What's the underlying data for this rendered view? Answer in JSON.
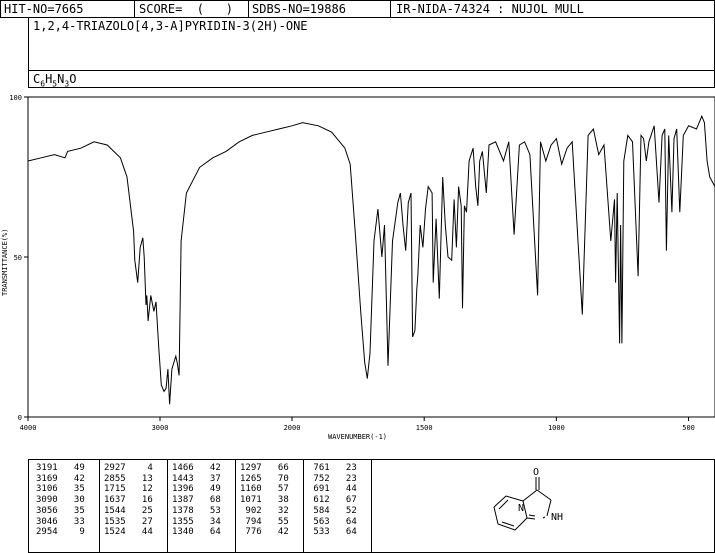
{
  "header": {
    "hit_no": "HIT-NO=7665",
    "score": "SCORE=  (   )",
    "sdbs_no": "SDBS-NO=19886",
    "ir_info": "IR-NIDA-74324 : NUJOL MULL",
    "compound_name": "1,2,4-TRIAZOLO[4,3-A]PYRIDIN-3(2H)-ONE",
    "formula": "C6H5N3O"
  },
  "chart_data": {
    "type": "line",
    "xlabel": "WAVENUMBER(-1)",
    "ylabel": "TRANSMITTANCE(%)",
    "xlim": [
      4000,
      400
    ],
    "ylim": [
      0,
      100
    ],
    "x_ticks": [
      "4000",
      "3000",
      "2000",
      "1500",
      "1000",
      "500"
    ],
    "y_ticks": [
      "100",
      "50",
      "0"
    ],
    "series": [
      {
        "points": [
          [
            4000,
            80
          ],
          [
            3900,
            81
          ],
          [
            3800,
            82
          ],
          [
            3720,
            81
          ],
          [
            3700,
            83
          ],
          [
            3600,
            84
          ],
          [
            3500,
            86
          ],
          [
            3400,
            85
          ],
          [
            3300,
            81
          ],
          [
            3250,
            75
          ],
          [
            3200,
            58
          ],
          [
            3191,
            49
          ],
          [
            3169,
            42
          ],
          [
            3150,
            53
          ],
          [
            3130,
            56
          ],
          [
            3120,
            50
          ],
          [
            3106,
            35
          ],
          [
            3100,
            38
          ],
          [
            3090,
            30
          ],
          [
            3070,
            38
          ],
          [
            3056,
            35
          ],
          [
            3046,
            33
          ],
          [
            3030,
            36
          ],
          [
            3010,
            22
          ],
          [
            2990,
            10
          ],
          [
            2970,
            8
          ],
          [
            2954,
            9
          ],
          [
            2940,
            15
          ],
          [
            2927,
            4
          ],
          [
            2910,
            15
          ],
          [
            2880,
            19
          ],
          [
            2870,
            17
          ],
          [
            2855,
            13
          ],
          [
            2840,
            55
          ],
          [
            2800,
            70
          ],
          [
            2700,
            78
          ],
          [
            2600,
            81
          ],
          [
            2500,
            83
          ],
          [
            2400,
            86
          ],
          [
            2300,
            88
          ],
          [
            2200,
            89
          ],
          [
            2100,
            90
          ],
          [
            2000,
            91
          ],
          [
            1960,
            92
          ],
          [
            1900,
            91
          ],
          [
            1850,
            89
          ],
          [
            1800,
            84
          ],
          [
            1780,
            79
          ],
          [
            1760,
            57
          ],
          [
            1740,
            33
          ],
          [
            1725,
            17
          ],
          [
            1715,
            12
          ],
          [
            1705,
            20
          ],
          [
            1690,
            55
          ],
          [
            1675,
            65
          ],
          [
            1660,
            50
          ],
          [
            1650,
            60
          ],
          [
            1637,
            16
          ],
          [
            1620,
            55
          ],
          [
            1600,
            67
          ],
          [
            1590,
            70
          ],
          [
            1580,
            60
          ],
          [
            1570,
            52
          ],
          [
            1560,
            67
          ],
          [
            1550,
            70
          ],
          [
            1544,
            25
          ],
          [
            1535,
            27
          ],
          [
            1528,
            40
          ],
          [
            1524,
            44
          ],
          [
            1515,
            60
          ],
          [
            1505,
            53
          ],
          [
            1495,
            65
          ],
          [
            1485,
            72
          ],
          [
            1470,
            70
          ],
          [
            1466,
            42
          ],
          [
            1455,
            62
          ],
          [
            1443,
            37
          ],
          [
            1430,
            75
          ],
          [
            1420,
            60
          ],
          [
            1410,
            50
          ],
          [
            1396,
            49
          ],
          [
            1387,
            68
          ],
          [
            1378,
            53
          ],
          [
            1370,
            72
          ],
          [
            1360,
            66
          ],
          [
            1355,
            34
          ],
          [
            1348,
            66
          ],
          [
            1340,
            64
          ],
          [
            1330,
            80
          ],
          [
            1315,
            84
          ],
          [
            1305,
            72
          ],
          [
            1297,
            66
          ],
          [
            1290,
            80
          ],
          [
            1280,
            83
          ],
          [
            1265,
            70
          ],
          [
            1255,
            85
          ],
          [
            1230,
            86
          ],
          [
            1200,
            80
          ],
          [
            1180,
            86
          ],
          [
            1160,
            57
          ],
          [
            1140,
            85
          ],
          [
            1120,
            86
          ],
          [
            1100,
            82
          ],
          [
            1071,
            38
          ],
          [
            1060,
            86
          ],
          [
            1040,
            80
          ],
          [
            1020,
            85
          ],
          [
            1000,
            87
          ],
          [
            980,
            79
          ],
          [
            960,
            84
          ],
          [
            940,
            86
          ],
          [
            902,
            32
          ],
          [
            880,
            88
          ],
          [
            860,
            90
          ],
          [
            840,
            82
          ],
          [
            820,
            85
          ],
          [
            794,
            55
          ],
          [
            780,
            68
          ],
          [
            776,
            42
          ],
          [
            770,
            70
          ],
          [
            761,
            23
          ],
          [
            757,
            60
          ],
          [
            752,
            23
          ],
          [
            745,
            80
          ],
          [
            730,
            88
          ],
          [
            712,
            86
          ],
          [
            691,
            44
          ],
          [
            680,
            88
          ],
          [
            670,
            87
          ],
          [
            660,
            80
          ],
          [
            650,
            86
          ],
          [
            630,
            91
          ],
          [
            612,
            67
          ],
          [
            600,
            88
          ],
          [
            590,
            90
          ],
          [
            584,
            52
          ],
          [
            575,
            88
          ],
          [
            563,
            64
          ],
          [
            555,
            87
          ],
          [
            545,
            90
          ],
          [
            533,
            64
          ],
          [
            520,
            88
          ],
          [
            500,
            91
          ],
          [
            470,
            90
          ],
          [
            450,
            94
          ],
          [
            440,
            92
          ],
          [
            430,
            80
          ],
          [
            420,
            75
          ],
          [
            400,
            72
          ]
        ]
      }
    ]
  },
  "peaks": [
    [
      [
        "3191",
        "49"
      ],
      [
        "3169",
        "42"
      ],
      [
        "3106",
        "35"
      ],
      [
        "3090",
        "30"
      ],
      [
        "3056",
        "35"
      ],
      [
        "3046",
        "33"
      ],
      [
        "2954",
        "9"
      ]
    ],
    [
      [
        "2927",
        "4"
      ],
      [
        "2855",
        "13"
      ],
      [
        "1715",
        "12"
      ],
      [
        "1637",
        "16"
      ],
      [
        "1544",
        "25"
      ],
      [
        "1535",
        "27"
      ],
      [
        "1524",
        "44"
      ]
    ],
    [
      [
        "1466",
        "42"
      ],
      [
        "1443",
        "37"
      ],
      [
        "1396",
        "49"
      ],
      [
        "1387",
        "68"
      ],
      [
        "1378",
        "53"
      ],
      [
        "1355",
        "34"
      ],
      [
        "1340",
        "64"
      ]
    ],
    [
      [
        "1297",
        "66"
      ],
      [
        "1265",
        "70"
      ],
      [
        "1160",
        "57"
      ],
      [
        "1071",
        "38"
      ],
      [
        "902",
        "32"
      ],
      [
        "794",
        "55"
      ],
      [
        "776",
        "42"
      ]
    ],
    [
      [
        "761",
        "23"
      ],
      [
        "752",
        "23"
      ],
      [
        "691",
        "44"
      ],
      [
        "612",
        "67"
      ],
      [
        "584",
        "52"
      ],
      [
        "563",
        "64"
      ],
      [
        "533",
        "64"
      ]
    ]
  ],
  "structure": {
    "atom_o": "O",
    "atom_n": "N",
    "atom_nh": "NH"
  }
}
